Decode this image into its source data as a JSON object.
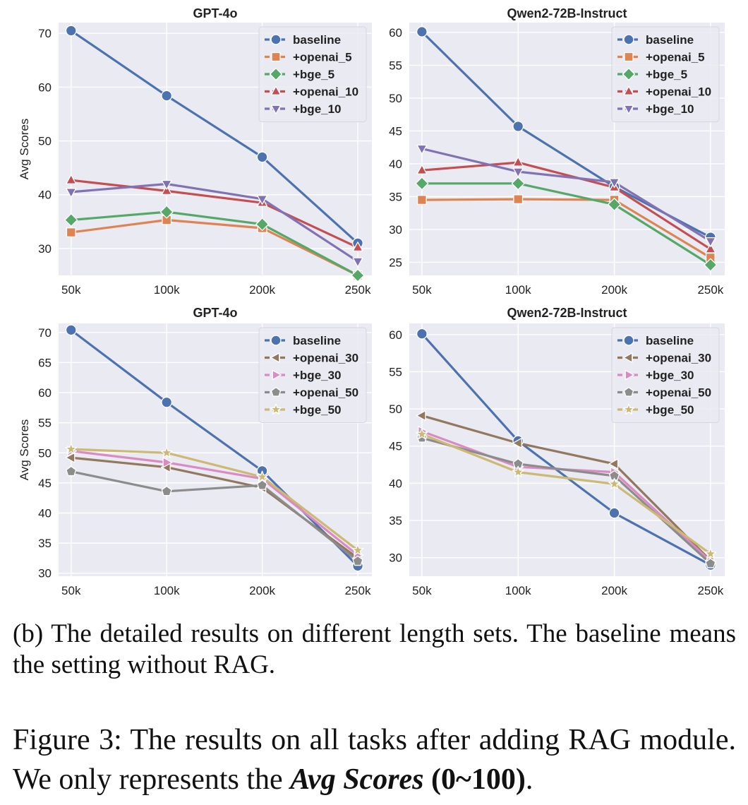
{
  "chart_data": [
    {
      "type": "line",
      "title": "GPT-4o",
      "xlabel": "",
      "ylabel": "Avg Scores",
      "categories": [
        "50k",
        "100k",
        "200k",
        "250k"
      ],
      "ylim": [
        25,
        72
      ],
      "yticks": [
        30,
        40,
        50,
        60,
        70
      ],
      "grid": true,
      "legend": "top-right",
      "series": [
        {
          "name": "baseline",
          "values": [
            70.5,
            58.4,
            47.0,
            31.0
          ],
          "color": "#4c72b0",
          "marker": "circle"
        },
        {
          "name": "+openai_5",
          "values": [
            33.0,
            35.3,
            33.8,
            25.0
          ],
          "color": "#dd8452",
          "marker": "square"
        },
        {
          "name": "+bge_5",
          "values": [
            35.3,
            36.8,
            34.5,
            25.0
          ],
          "color": "#55a868",
          "marker": "diamond"
        },
        {
          "name": "+openai_10",
          "values": [
            42.7,
            40.7,
            38.5,
            30.2
          ],
          "color": "#c44e52",
          "marker": "triangle-up"
        },
        {
          "name": "+bge_10",
          "values": [
            40.5,
            42.0,
            39.2,
            27.6
          ],
          "color": "#8172b3",
          "marker": "triangle-down"
        }
      ]
    },
    {
      "type": "line",
      "title": "Qwen2-72B-Instruct",
      "xlabel": "",
      "ylabel": "",
      "categories": [
        "50k",
        "100k",
        "200k",
        "250k"
      ],
      "ylim": [
        23,
        61.5
      ],
      "yticks": [
        25,
        30,
        35,
        40,
        45,
        50,
        55,
        60
      ],
      "grid": true,
      "legend": "top-right",
      "series": [
        {
          "name": "baseline",
          "values": [
            60.1,
            45.7,
            36.5,
            28.8
          ],
          "color": "#4c72b0",
          "marker": "circle"
        },
        {
          "name": "+openai_5",
          "values": [
            34.5,
            34.6,
            34.5,
            25.7
          ],
          "color": "#dd8452",
          "marker": "square"
        },
        {
          "name": "+bge_5",
          "values": [
            37.0,
            37.0,
            33.8,
            24.6
          ],
          "color": "#55a868",
          "marker": "diamond"
        },
        {
          "name": "+openai_10",
          "values": [
            39.0,
            40.2,
            36.4,
            27.0
          ],
          "color": "#c44e52",
          "marker": "triangle-up"
        },
        {
          "name": "+bge_10",
          "values": [
            42.3,
            38.8,
            37.2,
            28.2
          ],
          "color": "#8172b3",
          "marker": "triangle-down"
        }
      ]
    },
    {
      "type": "line",
      "title": "GPT-4o",
      "xlabel": "",
      "ylabel": "Avg Scores",
      "categories": [
        "50k",
        "100k",
        "200k",
        "250k"
      ],
      "ylim": [
        29.5,
        71.5
      ],
      "yticks": [
        30,
        35,
        40,
        45,
        50,
        55,
        60,
        65,
        70
      ],
      "grid": true,
      "legend": "top-right",
      "series": [
        {
          "name": "baseline",
          "values": [
            70.4,
            58.4,
            47.0,
            31.2
          ],
          "color": "#4c72b0",
          "marker": "circle"
        },
        {
          "name": "+openai_30",
          "values": [
            49.2,
            47.6,
            44.2,
            32.5
          ],
          "color": "#937860",
          "marker": "triangle-left"
        },
        {
          "name": "+bge_30",
          "values": [
            50.3,
            48.4,
            45.7,
            33.0
          ],
          "color": "#da8bc3",
          "marker": "triangle-right"
        },
        {
          "name": "+openai_50",
          "values": [
            46.9,
            43.6,
            44.6,
            32.0
          ],
          "color": "#8c8c8c",
          "marker": "pentagon"
        },
        {
          "name": "+bge_50",
          "values": [
            50.6,
            50.0,
            46.0,
            33.8
          ],
          "color": "#ccb974",
          "marker": "star"
        }
      ]
    },
    {
      "type": "line",
      "title": "Qwen2-72B-Instruct",
      "xlabel": "",
      "ylabel": "",
      "categories": [
        "50k",
        "100k",
        "200k",
        "250k"
      ],
      "ylim": [
        27.5,
        61.5
      ],
      "yticks": [
        30,
        35,
        40,
        45,
        50,
        55,
        60
      ],
      "grid": true,
      "legend": "top-right",
      "series": [
        {
          "name": "baseline",
          "values": [
            60.1,
            45.7,
            36.0,
            29.0
          ],
          "color": "#4c72b0",
          "marker": "circle"
        },
        {
          "name": "+openai_30",
          "values": [
            49.1,
            45.4,
            42.6,
            29.6
          ],
          "color": "#937860",
          "marker": "triangle-left"
        },
        {
          "name": "+bge_30",
          "values": [
            47.0,
            42.2,
            41.5,
            29.5
          ],
          "color": "#da8bc3",
          "marker": "triangle-right"
        },
        {
          "name": "+openai_50",
          "values": [
            46.1,
            42.6,
            41.0,
            29.2
          ],
          "color": "#8c8c8c",
          "marker": "pentagon"
        },
        {
          "name": "+bge_50",
          "values": [
            46.6,
            41.5,
            39.9,
            30.5
          ],
          "color": "#ccb974",
          "marker": "star"
        }
      ]
    }
  ],
  "captions": {
    "sub_caption": "(b) The detailed results on different length sets. The baseline means the setting without RAG.",
    "figure_prefix": "Figure 3:  The results on all tasks after adding RAG module. We only represents the ",
    "figure_emph": "Avg Scores",
    "figure_range": "(0~100)",
    "figure_end": "."
  },
  "colors": {
    "plot_background": "#eaeaf2",
    "grid": "#ffffff",
    "text": "#222222"
  }
}
